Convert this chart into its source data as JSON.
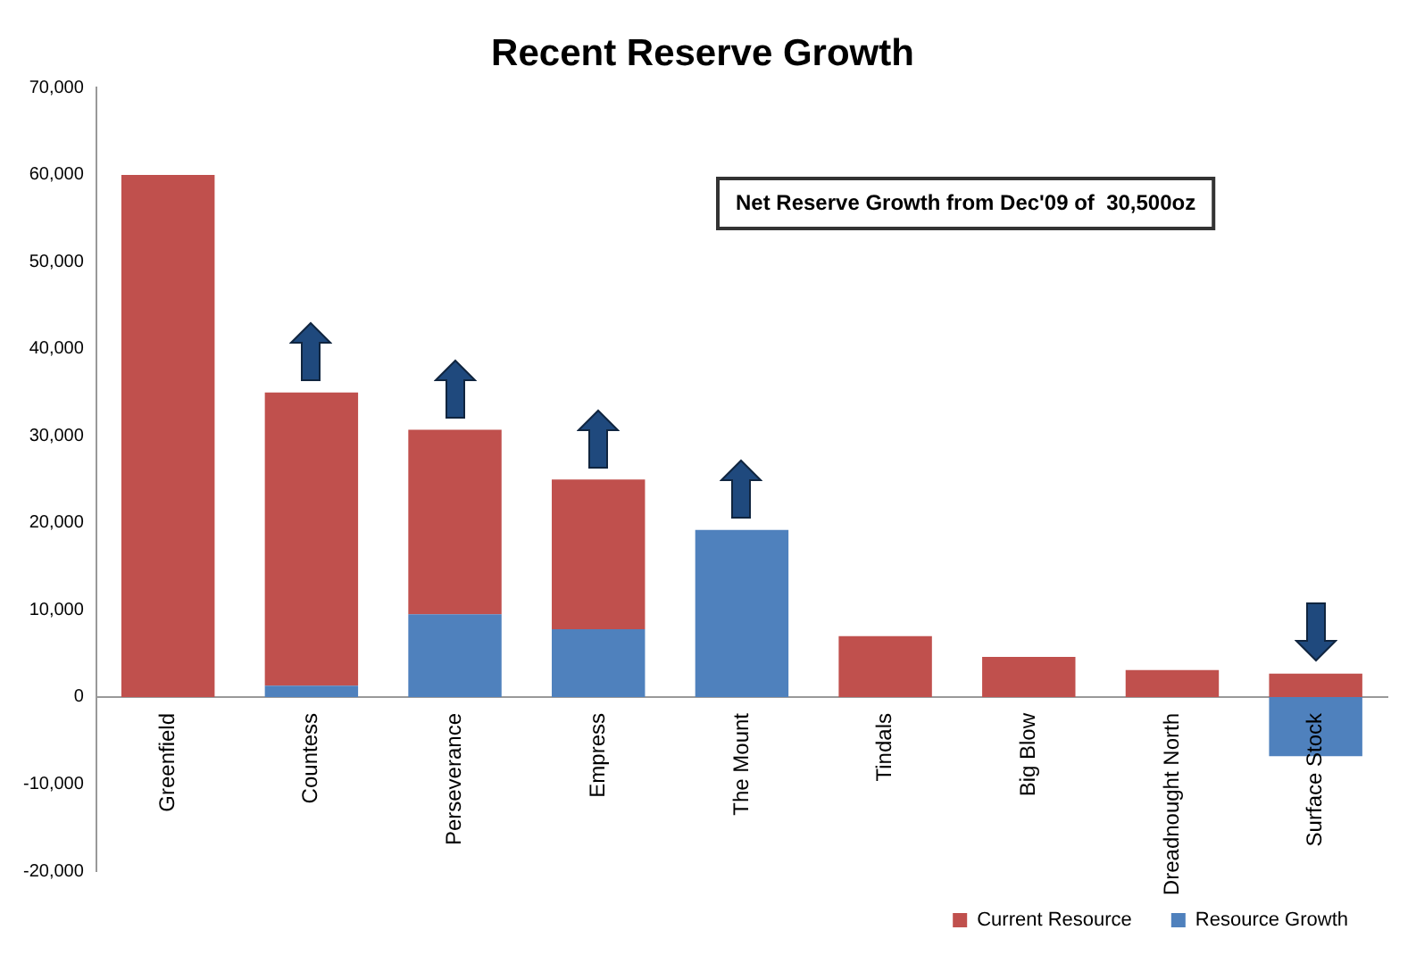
{
  "chart_data": {
    "type": "bar",
    "title": "Recent Reserve Growth",
    "stacked": true,
    "categories": [
      "Greenfield",
      "Countess",
      "Perseverance",
      "Empress",
      "The Mount",
      "Tindals",
      "Big Blow",
      "Dreadnought North",
      "Surface Stock"
    ],
    "series": [
      {
        "name": "Resource Growth",
        "color": "#4f81bd",
        "values": [
          0,
          1300,
          9500,
          7800,
          19200,
          0,
          0,
          0,
          -6800
        ]
      },
      {
        "name": "Current Resource",
        "color": "#c0504d",
        "values": [
          60000,
          33700,
          21200,
          17200,
          0,
          7000,
          4600,
          3100,
          2700
        ]
      }
    ],
    "ylim": [
      -20000,
      70000
    ],
    "yticks": [
      {
        "value": -20000,
        "label": "-20,000"
      },
      {
        "value": -10000,
        "label": "-10,000"
      },
      0,
      {
        "value": 10000,
        "label": "10,000"
      },
      {
        "value": 20000,
        "label": "20,000"
      },
      {
        "value": 30000,
        "label": "30,000"
      },
      {
        "value": 40000,
        "label": "40,000"
      },
      {
        "value": 50000,
        "label": "50,000"
      },
      {
        "value": 60000,
        "label": "60,000"
      },
      {
        "value": 70000,
        "label": "70,000"
      }
    ],
    "grid": false,
    "legend": "bottom right",
    "annotations": [
      "Net Reserve Growth from Dec'09 of  30,500oz"
    ]
  }
}
